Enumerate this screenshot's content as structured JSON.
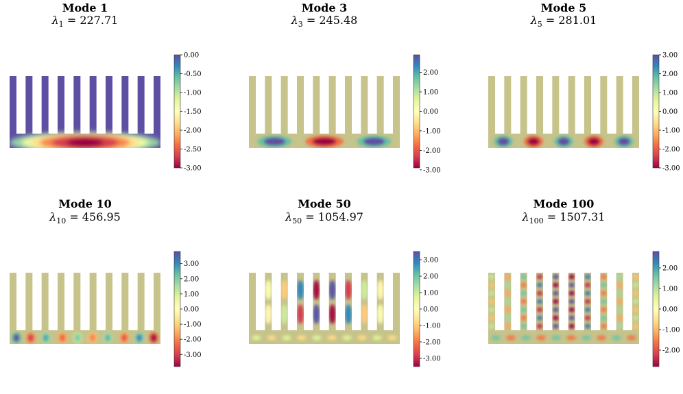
{
  "figure": {
    "colormap": "Spectral",
    "colormap_stops": [
      "#9e0142",
      "#d53e4f",
      "#f46d43",
      "#fdae61",
      "#fee08b",
      "#ffffbf",
      "#e6f598",
      "#abdda4",
      "#66c2a5",
      "#3288bd",
      "#5e4fa2"
    ],
    "background_field_color": "#c6c38b",
    "fin_count": 10
  },
  "chart_data": [
    {
      "type": "heatmap",
      "title": "Mode 1",
      "eigen_index": "1",
      "eigenvalue": "227.71",
      "colorbar": {
        "min": -3.0,
        "max": 0.0,
        "ticks": [
          "0.00",
          "-0.50",
          "-1.00",
          "-1.50",
          "-2.00",
          "-2.50",
          "-3.00"
        ],
        "tick_values": [
          0.0,
          -0.5,
          -1.0,
          -1.5,
          -2.0,
          -2.5,
          -3.0
        ]
      },
      "field_value": 0.0,
      "blobs": [
        {
          "pos": 0.5,
          "value": -3.0,
          "sigma": 0.34,
          "row": "base"
        }
      ]
    },
    {
      "type": "heatmap",
      "title": "Mode 3",
      "eigen_index": "3",
      "eigenvalue": "245.48",
      "colorbar": {
        "min": -2.9,
        "max": 2.9,
        "ticks": [
          "2.00",
          "1.00",
          "0.00",
          "-1.00",
          "-2.00",
          "-3.00"
        ],
        "tick_values": [
          2.0,
          1.0,
          0.0,
          -1.0,
          -2.0,
          -3.0
        ]
      },
      "field_value": 0.0,
      "blobs": [
        {
          "pos": 0.17,
          "value": 2.9,
          "sigma": 0.09,
          "row": "base"
        },
        {
          "pos": 0.5,
          "value": -2.9,
          "sigma": 0.1,
          "row": "base"
        },
        {
          "pos": 0.83,
          "value": 2.9,
          "sigma": 0.09,
          "row": "base"
        }
      ]
    },
    {
      "type": "heatmap",
      "title": "Mode 5",
      "eigen_index": "5",
      "eigenvalue": "281.01",
      "colorbar": {
        "min": -3.0,
        "max": 3.0,
        "ticks": [
          "3.00",
          "2.00",
          "1.00",
          "0.00",
          "-1.00",
          "-2.00",
          "-3.00"
        ],
        "tick_values": [
          3.0,
          2.0,
          1.0,
          0.0,
          -1.0,
          -2.0,
          -3.0
        ]
      },
      "field_value": 0.0,
      "blobs": [
        {
          "pos": 0.1,
          "value": 3.0,
          "sigma": 0.05,
          "row": "base"
        },
        {
          "pos": 0.3,
          "value": -3.0,
          "sigma": 0.05,
          "row": "base"
        },
        {
          "pos": 0.5,
          "value": 3.0,
          "sigma": 0.05,
          "row": "base"
        },
        {
          "pos": 0.7,
          "value": -3.0,
          "sigma": 0.05,
          "row": "base"
        },
        {
          "pos": 0.9,
          "value": 3.0,
          "sigma": 0.05,
          "row": "base"
        }
      ]
    },
    {
      "type": "heatmap",
      "title": "Mode 10",
      "eigen_index": "10",
      "eigenvalue": "456.95",
      "colorbar": {
        "min": -3.8,
        "max": 3.8,
        "ticks": [
          "3.00",
          "2.00",
          "1.00",
          "0.00",
          "-1.00",
          "-2.00",
          "-3.00"
        ],
        "tick_values": [
          3.0,
          2.0,
          1.0,
          0.0,
          -1.0,
          -2.0,
          -3.0
        ]
      },
      "field_value": 0.0,
      "blobs": [
        {
          "pos": 0.045,
          "value": 3.8,
          "sigma": 0.025,
          "row": "base"
        },
        {
          "pos": 0.14,
          "value": -3.0,
          "sigma": 0.025,
          "row": "base"
        },
        {
          "pos": 0.24,
          "value": 2.6,
          "sigma": 0.025,
          "row": "base"
        },
        {
          "pos": 0.35,
          "value": -2.4,
          "sigma": 0.025,
          "row": "base"
        },
        {
          "pos": 0.45,
          "value": 2.0,
          "sigma": 0.025,
          "row": "base"
        },
        {
          "pos": 0.55,
          "value": -2.0,
          "sigma": 0.025,
          "row": "base"
        },
        {
          "pos": 0.65,
          "value": 2.4,
          "sigma": 0.025,
          "row": "base"
        },
        {
          "pos": 0.76,
          "value": -2.6,
          "sigma": 0.025,
          "row": "base"
        },
        {
          "pos": 0.86,
          "value": 3.0,
          "sigma": 0.025,
          "row": "base"
        },
        {
          "pos": 0.955,
          "value": -3.8,
          "sigma": 0.025,
          "row": "base"
        }
      ]
    },
    {
      "type": "heatmap",
      "title": "Mode 50",
      "eigen_index": "50",
      "eigenvalue": "1054.97",
      "colorbar": {
        "min": -3.5,
        "max": 3.5,
        "ticks": [
          "3.00",
          "2.00",
          "1.00",
          "0.00",
          "-1.00",
          "-2.00",
          "-3.00"
        ],
        "tick_values": [
          3.0,
          2.0,
          1.0,
          0.0,
          -1.0,
          -2.0,
          -3.0
        ]
      },
      "field_value": 0.0,
      "fin_modes": [
        {
          "fin": 1,
          "amps": [
            0.2,
            -0.2
          ]
        },
        {
          "fin": 2,
          "amps": [
            -1.0,
            1.0
          ]
        },
        {
          "fin": 3,
          "amps": [
            2.8,
            -2.8
          ]
        },
        {
          "fin": 4,
          "amps": [
            -3.4,
            3.4
          ]
        },
        {
          "fin": 5,
          "amps": [
            3.4,
            -3.4
          ]
        },
        {
          "fin": 6,
          "amps": [
            -2.8,
            2.8
          ]
        },
        {
          "fin": 7,
          "amps": [
            1.0,
            -1.0
          ]
        },
        {
          "fin": 8,
          "amps": [
            -0.2,
            0.2
          ]
        }
      ],
      "base_ripple": {
        "count": 10,
        "value": 0.8
      }
    },
    {
      "type": "heatmap",
      "title": "Mode 100",
      "eigen_index": "100",
      "eigenvalue": "1507.31",
      "colorbar": {
        "min": -2.8,
        "max": 2.8,
        "ticks": [
          "2.00",
          "1.00",
          "0.00",
          "-1.00",
          "-2.00"
        ],
        "tick_values": [
          2.0,
          1.0,
          0.0,
          -1.0,
          -2.0
        ]
      },
      "field_value": 0.0,
      "fin_grid": {
        "rows": 7,
        "fin_amps": [
          0.9,
          1.2,
          1.6,
          2.4,
          2.8,
          2.8,
          2.4,
          1.6,
          1.2,
          0.9
        ]
      },
      "base_ripple": {
        "count": 10,
        "value": 1.6
      }
    }
  ]
}
